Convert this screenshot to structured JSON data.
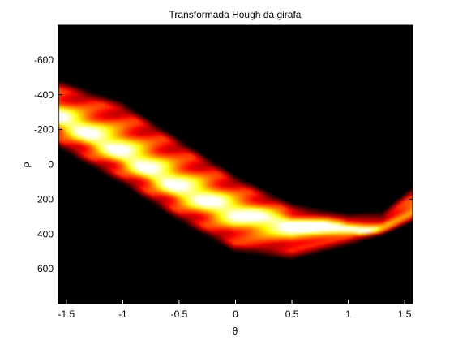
{
  "chart_data": {
    "type": "heatmap",
    "title": "Transformada Hough da girafa",
    "xlabel": "θ",
    "ylabel": "ρ",
    "xlim": [
      -1.5708,
      1.5708
    ],
    "ylim": [
      -800,
      800
    ],
    "y_axis_reversed": true,
    "xticks": [
      -1.5,
      -1,
      -0.5,
      0,
      0.5,
      1,
      1.5
    ],
    "xtick_labels": [
      "-1.5",
      "-1",
      "-0.5",
      "0",
      "0.5",
      "1",
      "1.5"
    ],
    "yticks": [
      -600,
      -400,
      -200,
      0,
      200,
      400,
      600
    ],
    "ytick_labels": [
      "-600",
      "-400",
      "-200",
      "0",
      "200",
      "400",
      "600"
    ],
    "colormap": "hot",
    "background_color": "#000000",
    "grid": false,
    "ridges": [
      {
        "description": "brightest band",
        "theta": [
          -1.5708,
          -1.0,
          -0.5,
          0.0,
          0.5,
          0.8,
          1.0,
          1.3,
          1.5708
        ],
        "rho": [
          -270,
          -60,
          140,
          280,
          350,
          360,
          370,
          390,
          330
        ],
        "intensity": 1.0
      },
      {
        "description": "upper envelope",
        "theta": [
          -1.5708,
          -1.0,
          -0.5,
          0.0,
          0.5,
          1.0,
          1.3,
          1.5708
        ],
        "rho": [
          -460,
          -330,
          -120,
          90,
          250,
          310,
          300,
          150
        ],
        "intensity": 0.55
      },
      {
        "description": "lower envelope",
        "theta": [
          -1.5708,
          -1.0,
          -0.5,
          0.0,
          0.5,
          1.0,
          1.3,
          1.5708
        ],
        "rho": [
          -120,
          90,
          300,
          480,
          520,
          440,
          380,
          300
        ],
        "intensity": 0.55
      }
    ]
  }
}
